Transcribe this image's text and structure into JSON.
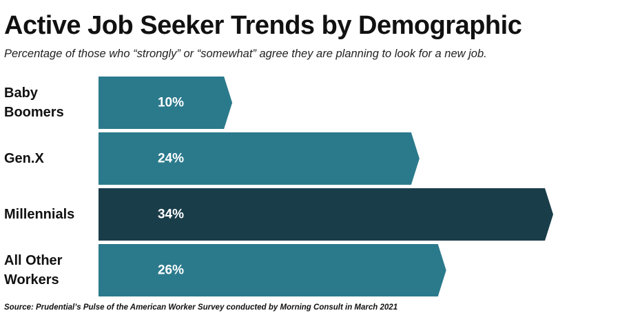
{
  "title": "Active Job Seeker Trends by Demographic",
  "subtitle": "Percentage of those who “strongly” or “somewhat” agree they are planning to look for a new job.",
  "source": "Source: Prudential’s Pulse of the American Worker Survey conducted by Morning Consult in March 2021",
  "colors": {
    "bar": "#2b7a8c",
    "highlight": "#1a3d4a"
  },
  "chart_data": {
    "type": "bar",
    "orientation": "horizontal",
    "categories": [
      [
        "Baby",
        "Boomers"
      ],
      [
        "Gen.X"
      ],
      [
        "Millennials"
      ],
      [
        "All Other",
        "Workers"
      ]
    ],
    "values": [
      10,
      24,
      34,
      26
    ],
    "value_labels": [
      "10%",
      "24%",
      "34%",
      "26%"
    ],
    "highlight_index": 2,
    "xlim": [
      0,
      34
    ],
    "grid": false,
    "legend": "none"
  }
}
